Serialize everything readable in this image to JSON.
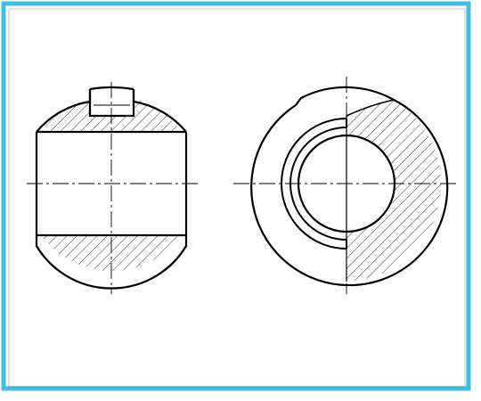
{
  "drawing": {
    "views": [
      {
        "name": "front-section-view"
      },
      {
        "name": "side-half-section-view"
      }
    ],
    "colors": {
      "border": "#3cc0e6",
      "line": "#000000",
      "background": "#ffffff"
    }
  }
}
